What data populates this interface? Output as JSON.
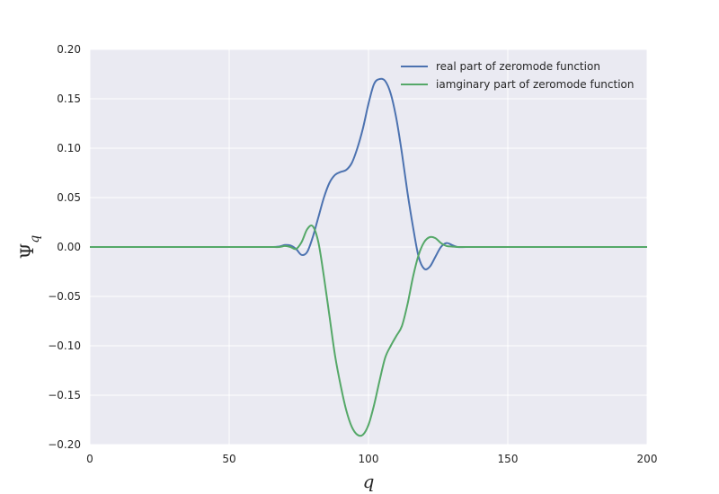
{
  "chart_data": {
    "type": "line",
    "title": "",
    "xlabel": "q",
    "ylabel_main": "Ψ",
    "ylabel_sub": "q",
    "xlim": [
      0,
      200
    ],
    "ylim": [
      -0.2,
      0.2
    ],
    "xticks": [
      0,
      50,
      100,
      150,
      200
    ],
    "xtick_labels": [
      "0",
      "50",
      "100",
      "150",
      "200"
    ],
    "yticks": [
      0.2,
      0.15,
      0.1,
      0.05,
      0.0,
      -0.05,
      -0.1,
      -0.15,
      -0.2
    ],
    "ytick_labels": [
      "0.20",
      "0.15",
      "0.10",
      "0.05",
      "0.00",
      "−0.05",
      "−0.10",
      "−0.15",
      "−0.20"
    ],
    "grid": true,
    "legend_position": "top-right",
    "background_color": "#EAEAF2",
    "grid_color": "#FFFFFF",
    "series": [
      {
        "name": "real part of zeromode function",
        "color": "#4C72B0",
        "x": [
          0,
          60,
          65,
          68,
          70,
          72,
          74,
          76,
          78,
          80,
          82,
          84,
          86,
          88,
          90,
          92,
          94,
          96,
          98,
          100,
          102,
          104,
          106,
          108,
          110,
          112,
          114,
          116,
          118,
          120,
          122,
          124,
          126,
          128,
          130,
          132,
          135,
          140,
          200
        ],
        "y": [
          0,
          0,
          0,
          0.0005,
          0.002,
          0.0015,
          -0.002,
          -0.008,
          -0.005,
          0.01,
          0.03,
          0.05,
          0.065,
          0.073,
          0.076,
          0.078,
          0.085,
          0.1,
          0.12,
          0.145,
          0.165,
          0.17,
          0.168,
          0.155,
          0.13,
          0.095,
          0.055,
          0.02,
          -0.01,
          -0.022,
          -0.02,
          -0.01,
          0.0,
          0.004,
          0.002,
          0.0,
          0,
          0,
          0
        ]
      },
      {
        "name": "iamginary part of zeromode function",
        "color": "#55A868",
        "x": [
          0,
          60,
          65,
          68,
          70,
          72,
          74,
          76,
          78,
          80,
          82,
          84,
          86,
          88,
          90,
          92,
          94,
          96,
          98,
          100,
          102,
          104,
          106,
          108,
          110,
          112,
          114,
          116,
          118,
          120,
          122,
          124,
          126,
          128,
          130,
          132,
          135,
          140,
          200
        ],
        "y": [
          0,
          0,
          0,
          0,
          0.001,
          0.0,
          -0.002,
          0.005,
          0.018,
          0.021,
          0.005,
          -0.03,
          -0.07,
          -0.11,
          -0.14,
          -0.165,
          -0.182,
          -0.19,
          -0.19,
          -0.18,
          -0.16,
          -0.135,
          -0.112,
          -0.1,
          -0.09,
          -0.08,
          -0.058,
          -0.03,
          -0.008,
          0.005,
          0.01,
          0.009,
          0.004,
          0.001,
          0.0005,
          0,
          0,
          0,
          0
        ]
      }
    ]
  }
}
